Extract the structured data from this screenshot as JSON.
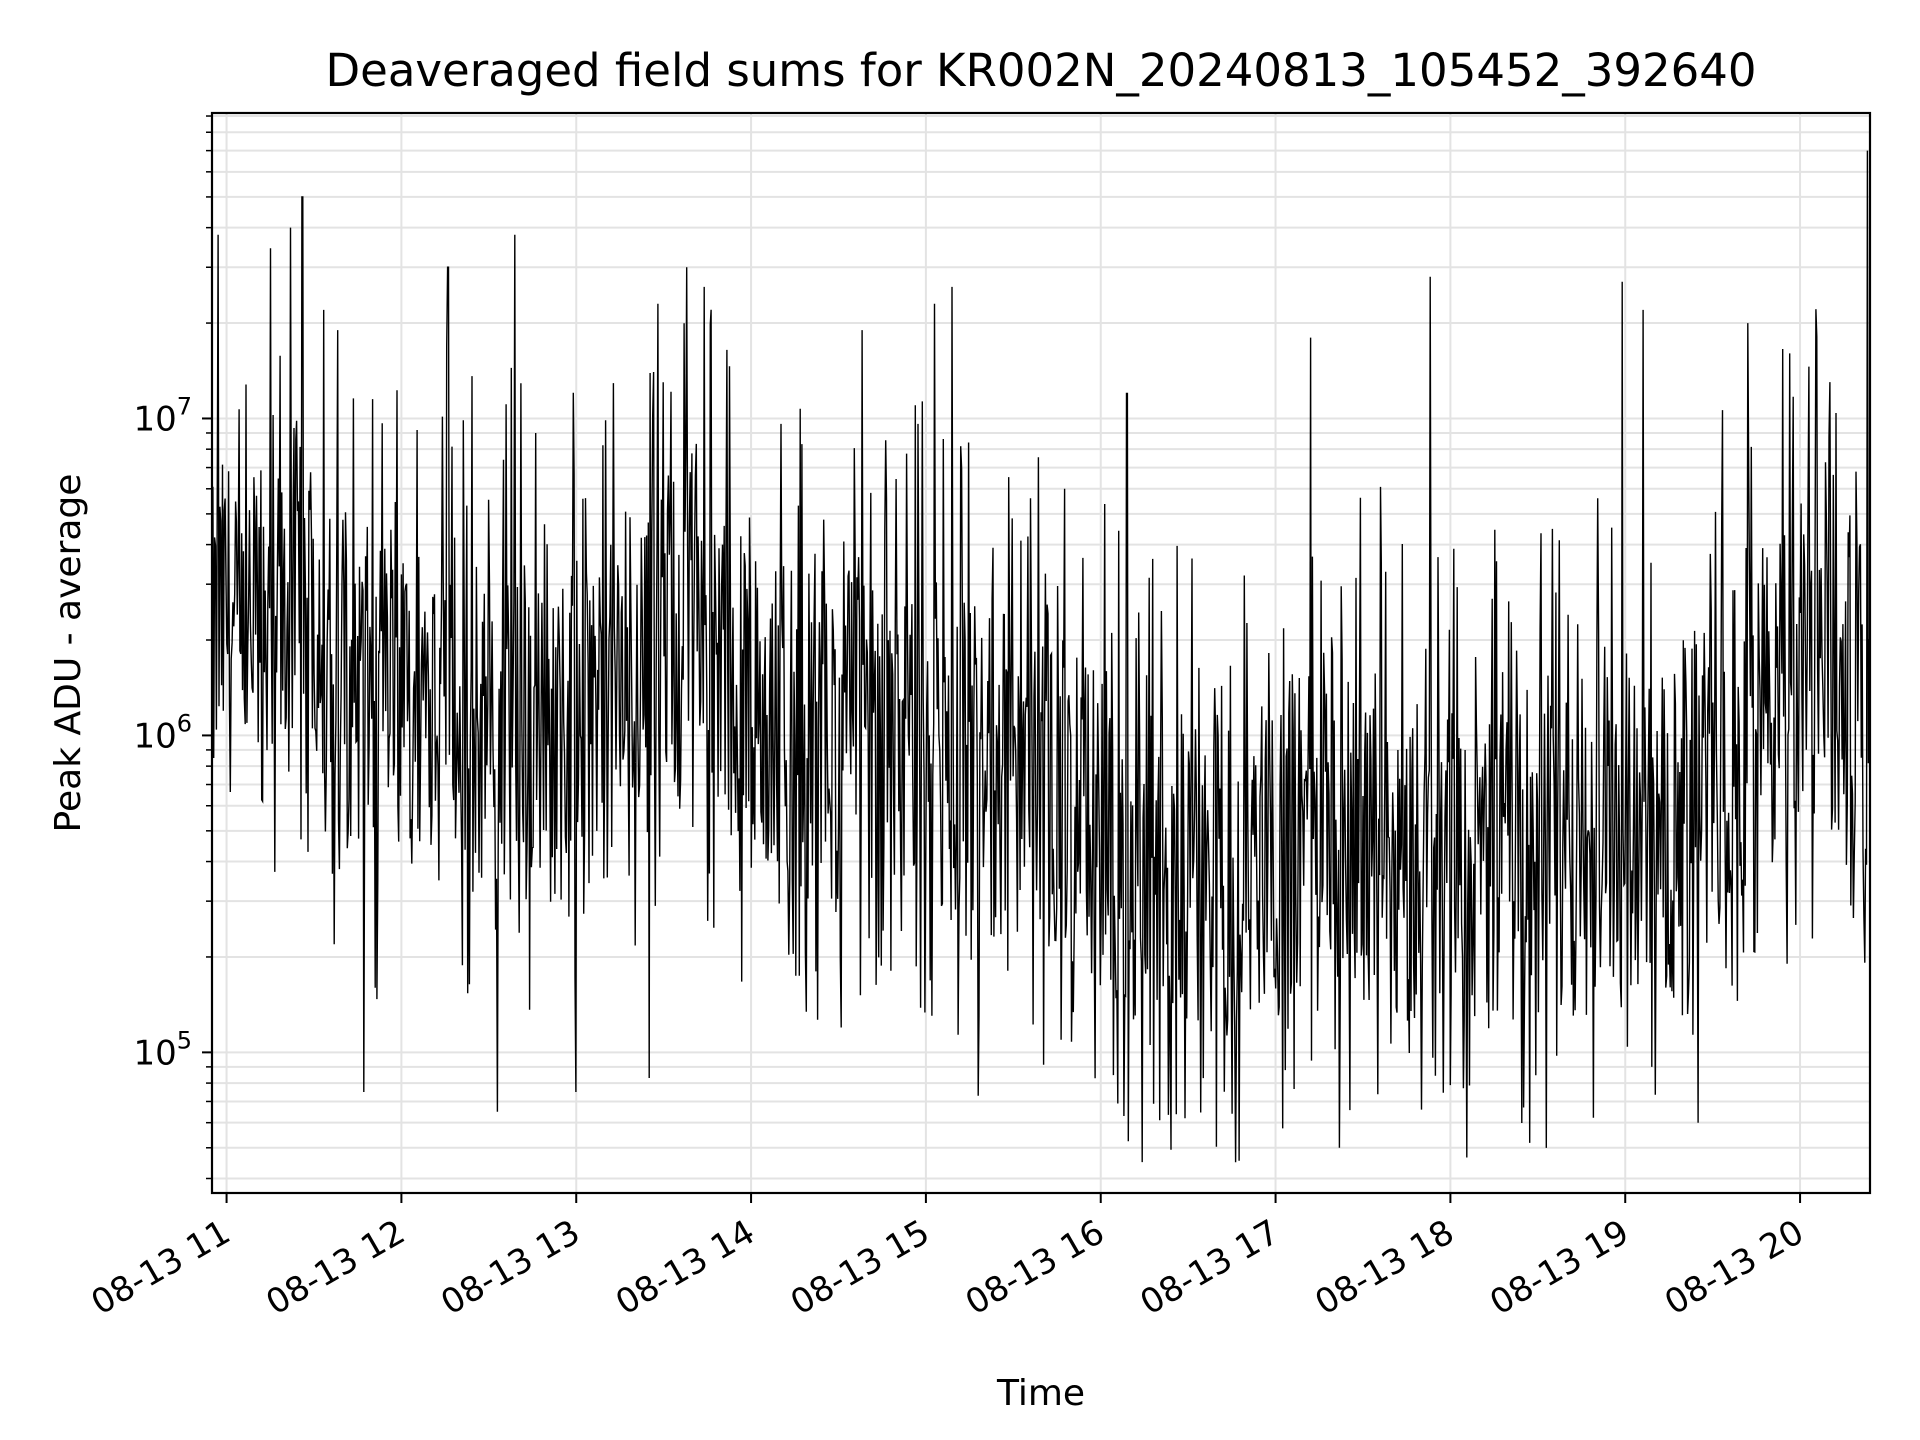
{
  "chart_data": {
    "type": "line",
    "title": "Deaveraged field sums for KR002N_20240813_105452_392640",
    "xlabel": "Time",
    "ylabel": "Peak ADU - average",
    "yscale": "log",
    "ylim": [
      36000,
      92000000
    ],
    "xlim": [
      "08-13 10:55",
      "08-13 20:24"
    ],
    "grid": true,
    "x_ticks": [
      "08-13 11",
      "08-13 12",
      "08-13 13",
      "08-13 14",
      "08-13 15",
      "08-13 16",
      "08-13 17",
      "08-13 18",
      "08-13 19",
      "08-13 20"
    ],
    "y_ticks": [
      {
        "value": 100000,
        "base": "10",
        "exp": "5"
      },
      {
        "value": 1000000,
        "base": "10",
        "exp": "6"
      },
      {
        "value": 10000000,
        "base": "10",
        "exp": "7"
      }
    ],
    "series": [
      {
        "color": "#000000",
        "x": [
          "08-13 10:55",
          "08-13 11:00",
          "08-13 11:05",
          "08-13 11:10",
          "08-13 11:15",
          "08-13 11:20",
          "08-13 11:25",
          "08-13 11:30",
          "08-13 11:35",
          "08-13 11:40",
          "08-13 11:45",
          "08-13 11:50",
          "08-13 11:55",
          "08-13 12:00",
          "08-13 12:05",
          "08-13 12:10",
          "08-13 12:15",
          "08-13 12:20",
          "08-13 12:25",
          "08-13 12:30",
          "08-13 12:35",
          "08-13 12:40",
          "08-13 12:45",
          "08-13 12:50",
          "08-13 12:55",
          "08-13 13:00",
          "08-13 13:05",
          "08-13 13:10",
          "08-13 13:15",
          "08-13 13:20",
          "08-13 13:25",
          "08-13 13:30",
          "08-13 13:35",
          "08-13 13:40",
          "08-13 13:45",
          "08-13 13:50",
          "08-13 13:55",
          "08-13 14:00",
          "08-13 14:05",
          "08-13 14:10",
          "08-13 14:15",
          "08-13 14:20",
          "08-13 14:25",
          "08-13 14:30",
          "08-13 14:35",
          "08-13 14:40",
          "08-13 14:45",
          "08-13 14:50",
          "08-13 14:55",
          "08-13 15:00",
          "08-13 15:05",
          "08-13 15:10",
          "08-13 15:15",
          "08-13 15:20",
          "08-13 15:25",
          "08-13 15:30",
          "08-13 15:35",
          "08-13 15:40",
          "08-13 15:45",
          "08-13 15:50",
          "08-13 15:55",
          "08-13 16:00",
          "08-13 16:05",
          "08-13 16:10",
          "08-13 16:15",
          "08-13 16:20",
          "08-13 16:25",
          "08-13 16:30",
          "08-13 16:35",
          "08-13 16:40",
          "08-13 16:45",
          "08-13 16:50",
          "08-13 16:55",
          "08-13 17:00",
          "08-13 17:05",
          "08-13 17:10",
          "08-13 17:15",
          "08-13 17:20",
          "08-13 17:25",
          "08-13 17:30",
          "08-13 17:35",
          "08-13 17:40",
          "08-13 17:45",
          "08-13 17:50",
          "08-13 17:55",
          "08-13 18:00",
          "08-13 18:05",
          "08-13 18:10",
          "08-13 18:15",
          "08-13 18:20",
          "08-13 18:25",
          "08-13 18:30",
          "08-13 18:35",
          "08-13 18:40",
          "08-13 18:45",
          "08-13 18:50",
          "08-13 18:55",
          "08-13 19:00",
          "08-13 19:05",
          "08-13 19:10",
          "08-13 19:15",
          "08-13 19:20",
          "08-13 19:25",
          "08-13 19:30",
          "08-13 19:35",
          "08-13 19:40",
          "08-13 19:45",
          "08-13 19:50",
          "08-13 19:55",
          "08-13 20:00",
          "08-13 20:05",
          "08-13 20:10",
          "08-13 20:15",
          "08-13 20:20",
          "08-13 20:24"
        ],
        "y": [
          1800000,
          2500000,
          1500000,
          2200000,
          3000000,
          2000000,
          3500000,
          2800000,
          2000000,
          1700000,
          1500000,
          1300000,
          1200000,
          1100000,
          1300000,
          1500000,
          1800000,
          1400000,
          1100000,
          1000000,
          1200000,
          1400000,
          1100000,
          900000,
          1000000,
          1200000,
          1300000,
          1100000,
          1500000,
          1700000,
          1600000,
          2000000,
          2500000,
          2700000,
          2200000,
          1800000,
          1400000,
          1200000,
          1100000,
          1000000,
          1200000,
          1000000,
          900000,
          1000000,
          1100000,
          900000,
          800000,
          900000,
          1000000,
          1100000,
          1000000,
          900000,
          800000,
          700000,
          800000,
          700000,
          600000,
          700000,
          650000,
          600000,
          550000,
          500000,
          450000,
          400000,
          380000,
          350000,
          400000,
          370000,
          350000,
          380000,
          360000,
          400000,
          420000,
          450000,
          500000,
          520000,
          600000,
          550000,
          500000,
          480000,
          500000,
          460000,
          420000,
          400000,
          420000,
          450000,
          400000,
          380000,
          400000,
          420000,
          450000,
          430000,
          400000,
          420000,
          450000,
          500000,
          550000,
          500000,
          480000,
          450000,
          500000,
          600000,
          700000,
          800000,
          900000,
          1000000,
          1100000,
          1300000,
          1500000,
          1700000,
          1800000,
          1700000,
          1600000,
          1800000,
          1500000
        ],
        "spikes_high": [
          {
            "x": "08-13 10:57",
            "y": 38000000
          },
          {
            "x": "08-13 11:22",
            "y": 40000000
          },
          {
            "x": "08-13 11:26",
            "y": 50000000
          },
          {
            "x": "08-13 11:38",
            "y": 19000000
          },
          {
            "x": "08-13 12:16",
            "y": 30000000
          },
          {
            "x": "08-13 12:39",
            "y": 38000000
          },
          {
            "x": "08-13 13:28",
            "y": 23000000
          },
          {
            "x": "08-13 13:38",
            "y": 30000000
          },
          {
            "x": "08-13 13:44",
            "y": 26000000
          },
          {
            "x": "08-13 14:38",
            "y": 19000000
          },
          {
            "x": "08-13 15:03",
            "y": 23000000
          },
          {
            "x": "08-13 15:09",
            "y": 26000000
          },
          {
            "x": "08-13 16:09",
            "y": 12000000
          },
          {
            "x": "08-13 17:12",
            "y": 18000000
          },
          {
            "x": "08-13 17:53",
            "y": 28000000
          },
          {
            "x": "08-13 18:59",
            "y": 27000000
          },
          {
            "x": "08-13 19:06",
            "y": 22000000
          },
          {
            "x": "08-13 19:42",
            "y": 20000000
          },
          {
            "x": "08-13 20:23",
            "y": 70000000
          }
        ],
        "spikes_low": [
          {
            "x": "08-13 11:47",
            "y": 75000
          },
          {
            "x": "08-13 12:33",
            "y": 65000
          },
          {
            "x": "08-13 13:00",
            "y": 75000
          },
          {
            "x": "08-13 13:25",
            "y": 83000
          },
          {
            "x": "08-13 15:18",
            "y": 73000
          },
          {
            "x": "08-13 16:08",
            "y": 63000
          },
          {
            "x": "08-13 16:29",
            "y": 62000
          },
          {
            "x": "08-13 16:45",
            "y": 64000
          },
          {
            "x": "08-13 17:22",
            "y": 50000
          },
          {
            "x": "08-13 17:50",
            "y": 66000
          },
          {
            "x": "08-13 18:25",
            "y": 67000
          },
          {
            "x": "08-13 19:25",
            "y": 60000
          }
        ]
      }
    ]
  }
}
